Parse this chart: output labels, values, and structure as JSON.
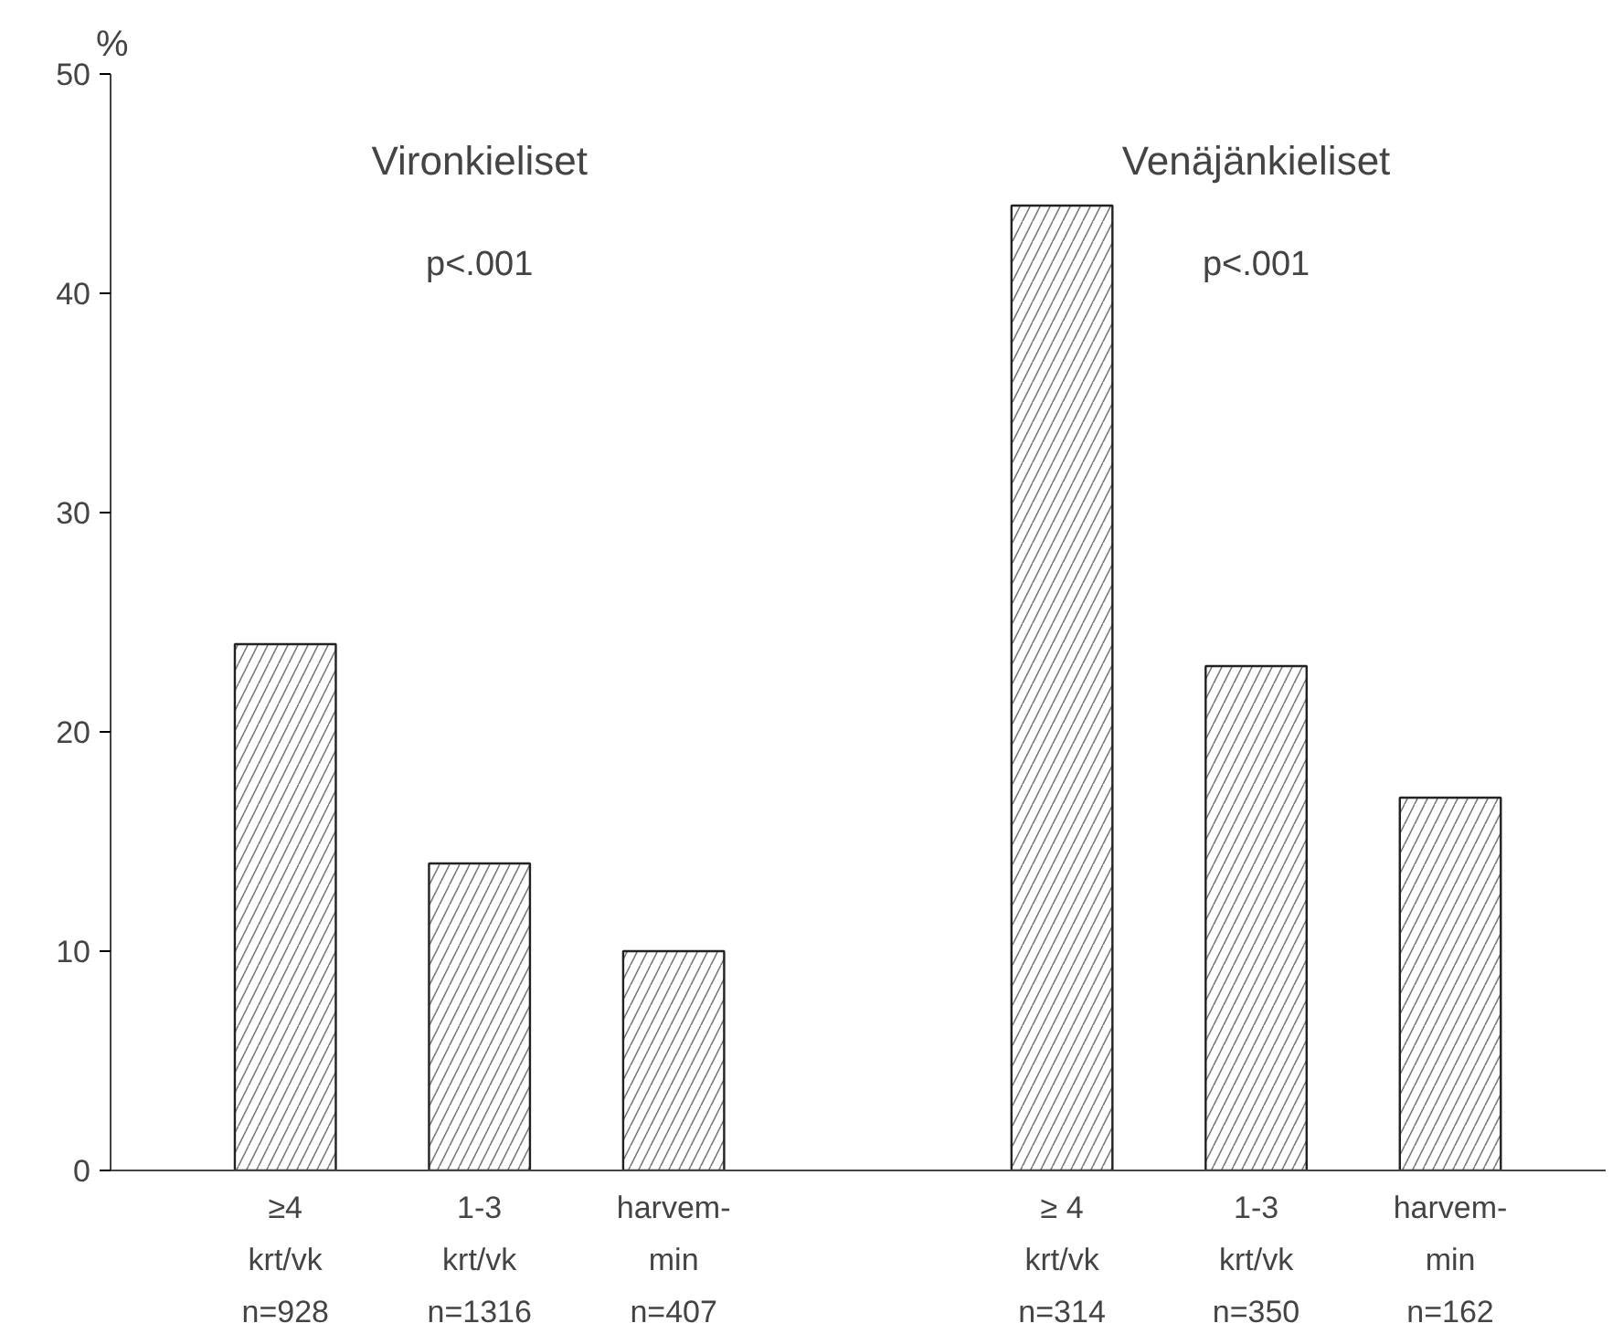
{
  "chart_data": {
    "type": "bar",
    "ylabel": "%",
    "categories": [
      "≥4\nkrt/vk\nn=928",
      "1-3\nkrt/vk\nn=1316",
      "harvem-\nmin\nn=407",
      null,
      "≥ 4\nkrt/vk\nn=314",
      "1-3\nkrt/vk\nn=350",
      "harvem-\nmin\nn=162"
    ],
    "values": [
      24,
      14,
      10,
      null,
      44,
      23,
      17
    ],
    "color": "#ffffff",
    "ylim": [
      0,
      50
    ],
    "yticks": [
      0,
      10,
      20,
      30,
      40,
      50
    ],
    "grid": false,
    "annotations": [
      "Vironkieliset",
      "p<.001",
      "Venäjänkieliset",
      "p<.001"
    ]
  }
}
